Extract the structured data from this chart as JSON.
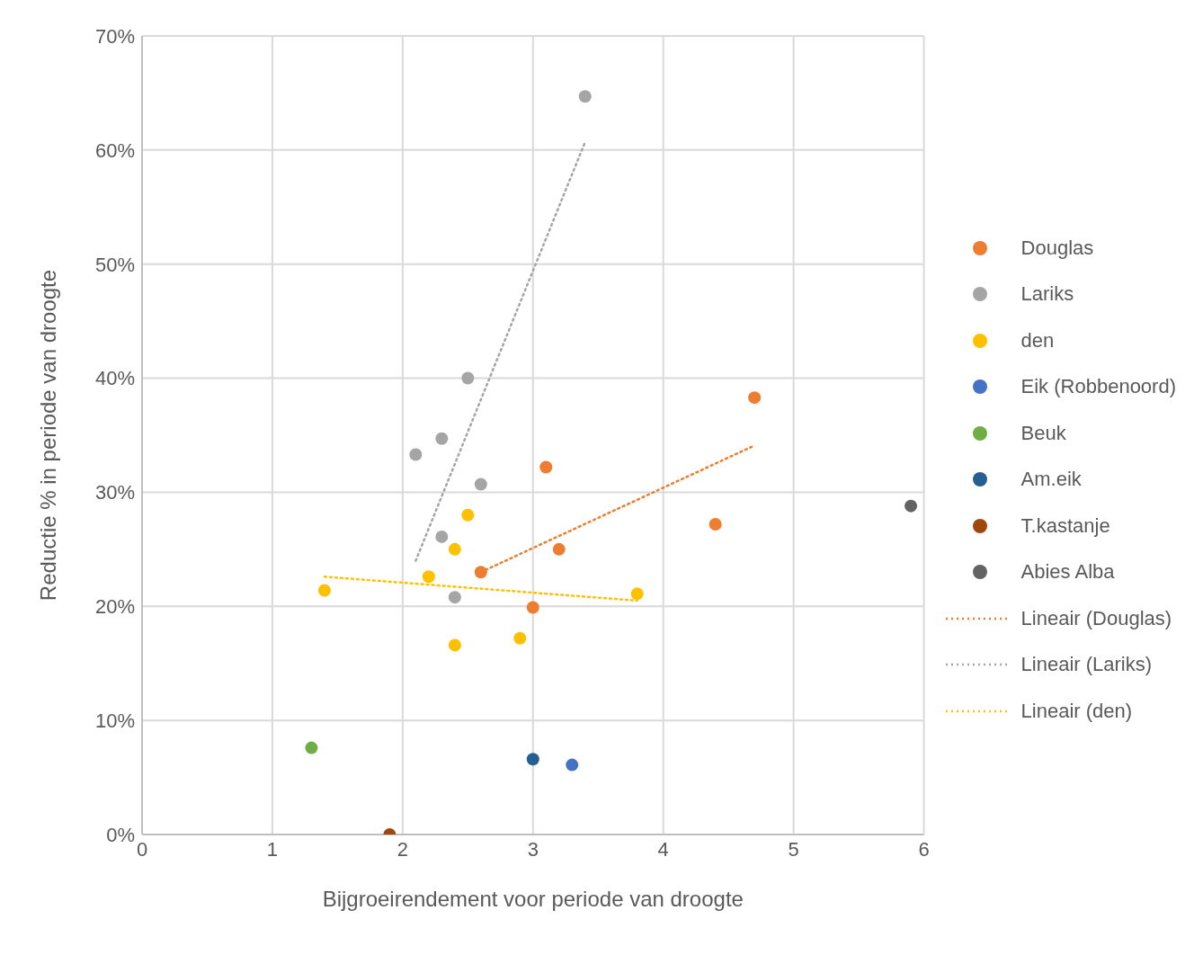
{
  "chart_data": {
    "type": "scatter",
    "xlabel": "Bijgroeirendement voor periode van droogte",
    "ylabel": "Reductie % in periode van droogte",
    "xlim": [
      0,
      6
    ],
    "xticks": [
      0,
      1,
      2,
      3,
      4,
      5,
      6
    ],
    "ylim": [
      0,
      70
    ],
    "yticks": [
      {
        "value": 0,
        "label": "0%"
      },
      {
        "value": 10,
        "label": "10%"
      },
      {
        "value": 20,
        "label": "20%"
      },
      {
        "value": 30,
        "label": "30%"
      },
      {
        "value": 40,
        "label": "40%"
      },
      {
        "value": 50,
        "label": "50%"
      },
      {
        "value": 60,
        "label": "60%"
      },
      {
        "value": 70,
        "label": "70%"
      }
    ],
    "grid": true,
    "legend": "right",
    "marker": "circle",
    "series": [
      {
        "name": "Douglas",
        "color": "#ed7d31",
        "x": [
          3.1,
          4.7,
          4.4,
          3.2,
          2.6,
          3.0
        ],
        "values": [
          32.2,
          38.3,
          27.2,
          25.0,
          23.0,
          19.9
        ]
      },
      {
        "name": "Lariks",
        "color": "#a5a5a5",
        "x": [
          3.4,
          2.5,
          2.3,
          2.1,
          2.6,
          2.3,
          2.4
        ],
        "values": [
          64.7,
          40.0,
          34.7,
          33.3,
          30.7,
          26.1,
          20.8
        ]
      },
      {
        "name": "den",
        "color": "#ffc000",
        "x": [
          2.5,
          2.4,
          2.2,
          1.4,
          3.8,
          2.9,
          2.4
        ],
        "values": [
          28.0,
          25.0,
          22.6,
          21.4,
          21.1,
          17.2,
          16.6
        ]
      },
      {
        "name": "Eik (Robbenoord)",
        "color": "#4472c4",
        "x": [
          3.3
        ],
        "values": [
          6.1
        ]
      },
      {
        "name": "Beuk",
        "color": "#70ad47",
        "x": [
          1.3
        ],
        "values": [
          7.6
        ]
      },
      {
        "name": "Am.eik",
        "color": "#255e91",
        "x": [
          3.0
        ],
        "values": [
          6.6
        ]
      },
      {
        "name": "T.kastanje",
        "color": "#9e480e",
        "x": [
          1.9
        ],
        "values": [
          0
        ]
      },
      {
        "name": "Abies Alba",
        "color": "#636363",
        "x": [
          5.9
        ],
        "values": [
          28.8
        ]
      },
      {
        "name": "Lineair (Douglas)",
        "type": "line",
        "color": "#ed7d31",
        "line_style": "dotted",
        "marker": "none",
        "x": [
          2.6,
          4.7
        ],
        "values": [
          23.0,
          34.1
        ]
      },
      {
        "name": "Lineair (Lariks)",
        "type": "line",
        "color": "#a5a5a5",
        "line_style": "dotted",
        "marker": "none",
        "x": [
          2.1,
          3.4
        ],
        "values": [
          24.0,
          60.7
        ]
      },
      {
        "name": "Lineair (den)",
        "type": "line",
        "color": "#ffc000",
        "line_style": "dotted",
        "marker": "none",
        "x": [
          1.4,
          3.8
        ],
        "values": [
          22.6,
          20.5
        ]
      }
    ]
  }
}
